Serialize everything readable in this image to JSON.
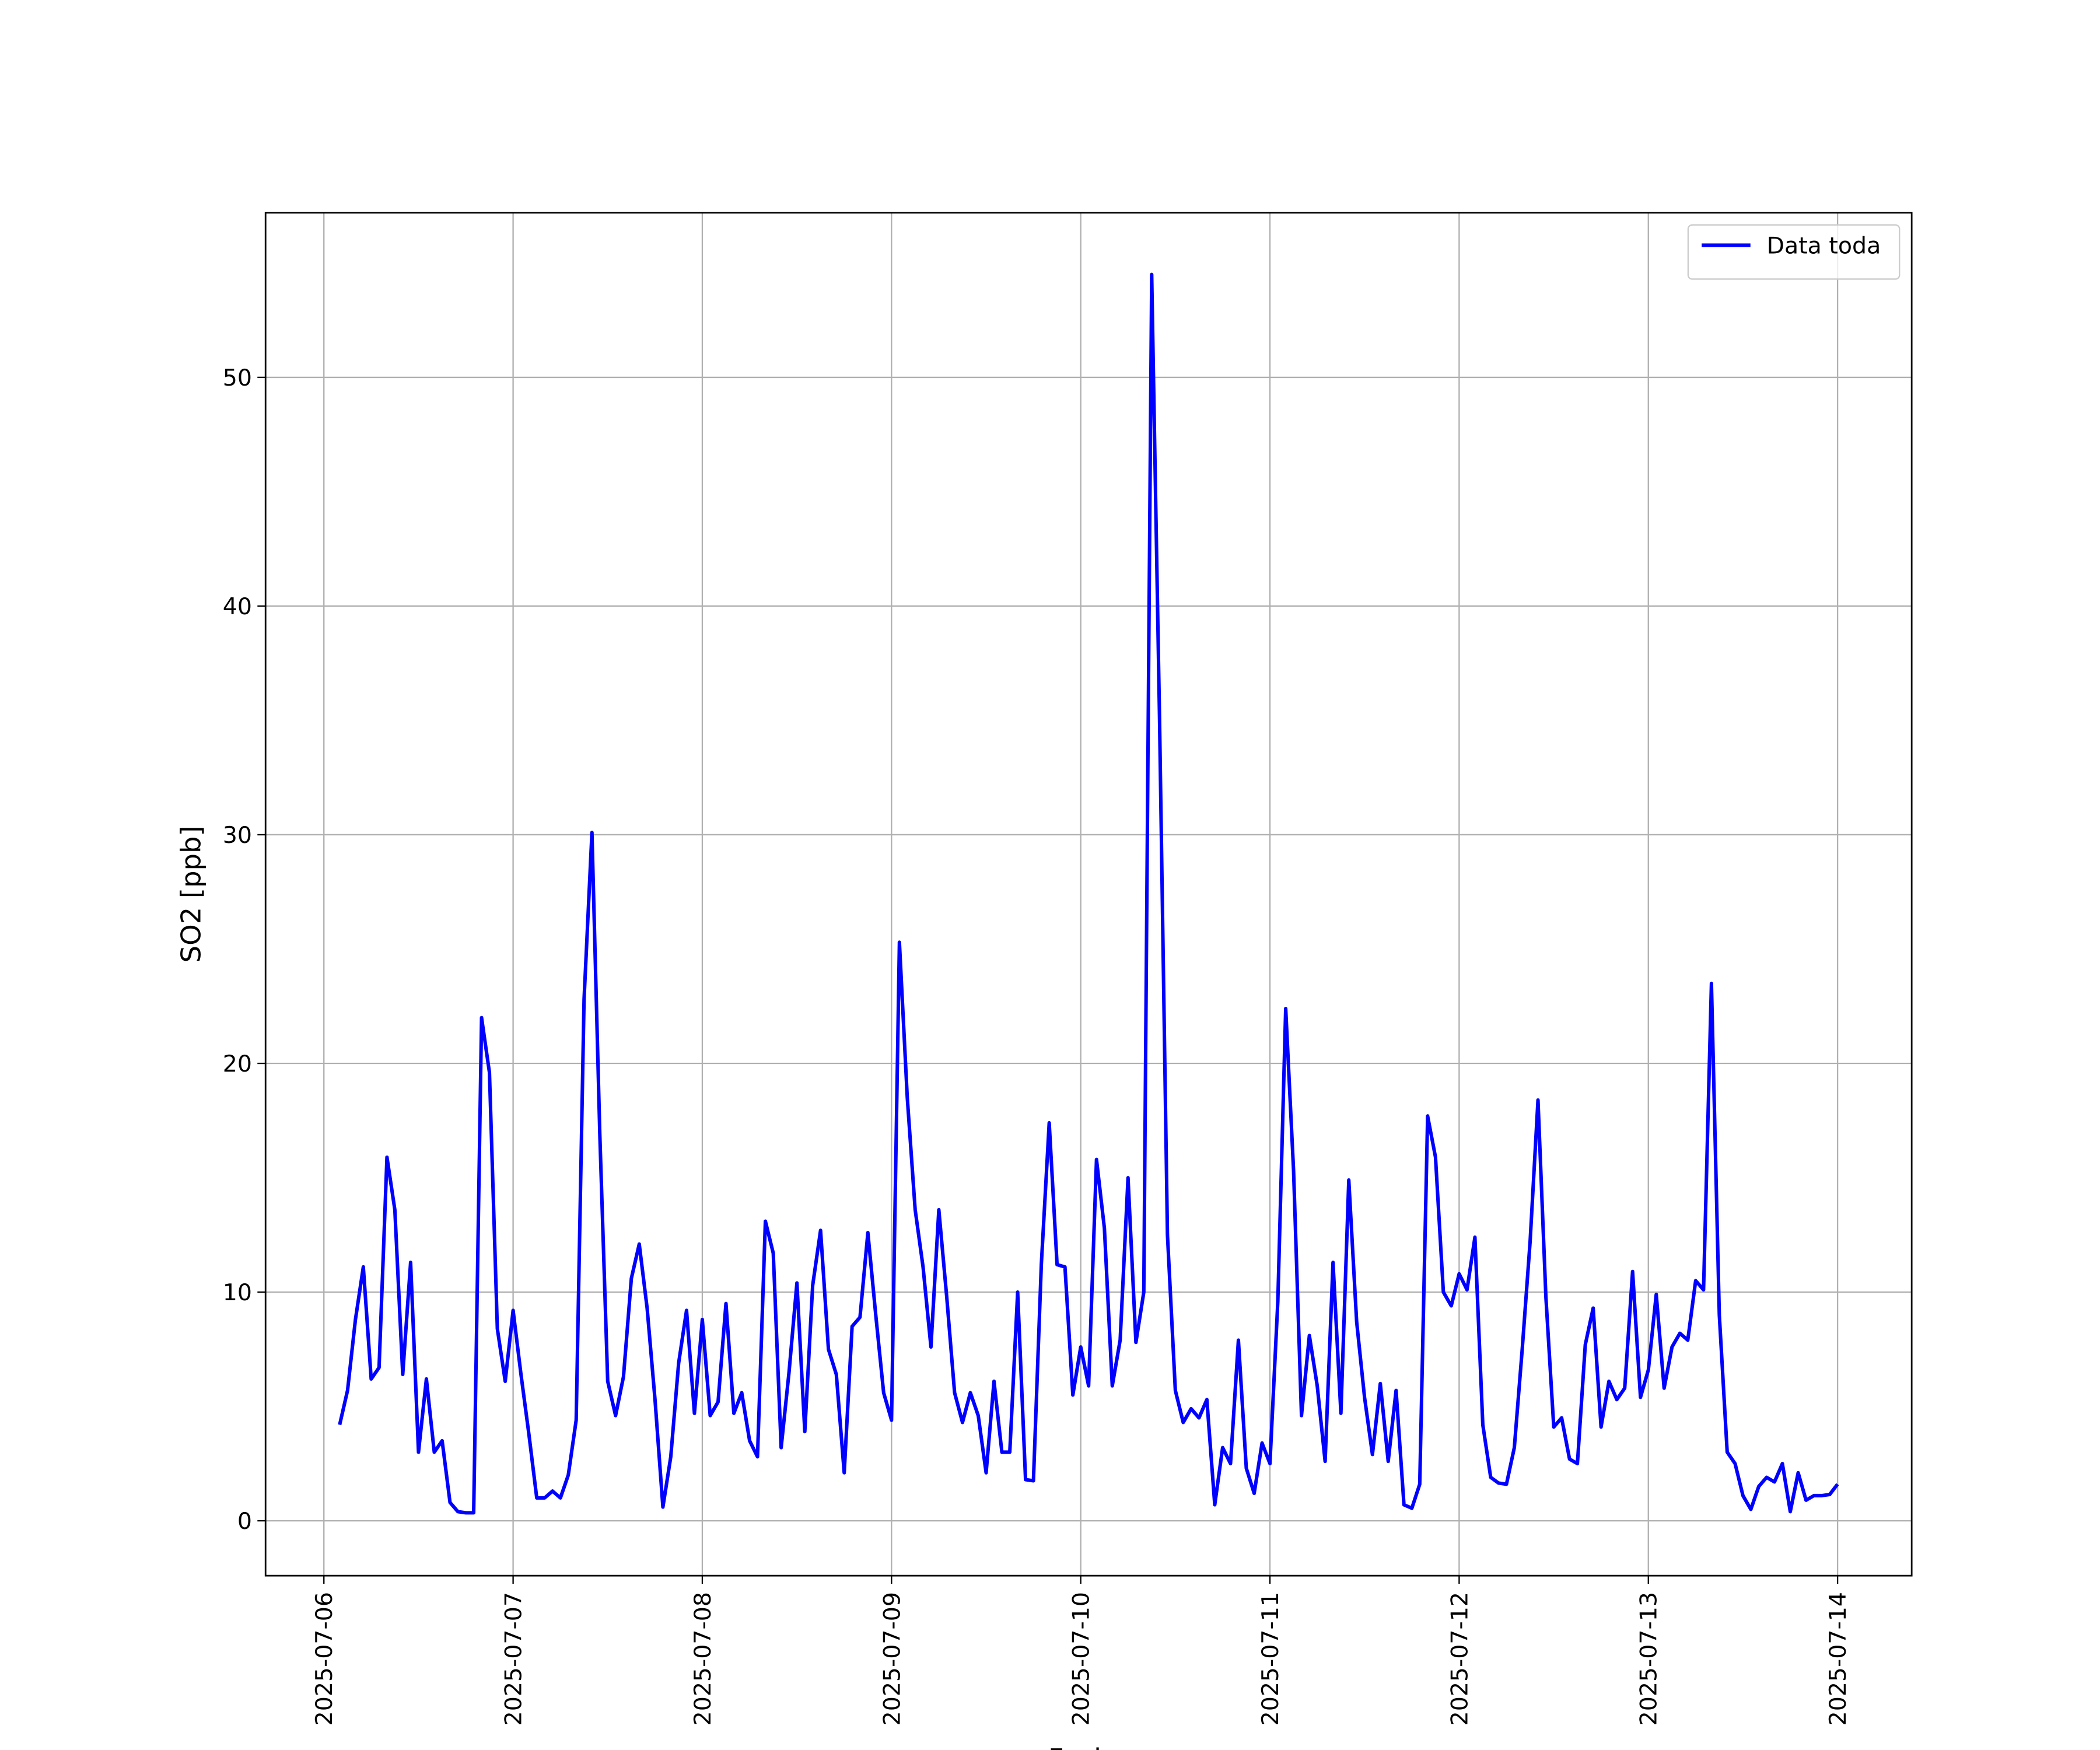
{
  "chart_data": {
    "type": "line",
    "xlabel": "Fecha",
    "ylabel": "SO2 [ppb]",
    "x": [
      "2025-07-06 02:00",
      "2025-07-06 03:00",
      "2025-07-06 04:00",
      "2025-07-06 05:00",
      "2025-07-06 06:00",
      "2025-07-06 07:00",
      "2025-07-06 08:00",
      "2025-07-06 09:00",
      "2025-07-06 10:00",
      "2025-07-06 11:00",
      "2025-07-06 12:00",
      "2025-07-06 13:00",
      "2025-07-06 14:00",
      "2025-07-06 15:00",
      "2025-07-06 16:00",
      "2025-07-06 17:00",
      "2025-07-06 18:00",
      "2025-07-06 19:00",
      "2025-07-06 20:00",
      "2025-07-06 21:00",
      "2025-07-06 22:00",
      "2025-07-06 23:00",
      "2025-07-07 00:00",
      "2025-07-07 01:00",
      "2025-07-07 02:00",
      "2025-07-07 03:00",
      "2025-07-07 04:00",
      "2025-07-07 05:00",
      "2025-07-07 06:00",
      "2025-07-07 07:00",
      "2025-07-07 08:00",
      "2025-07-07 09:00",
      "2025-07-07 10:00",
      "2025-07-07 11:00",
      "2025-07-07 12:00",
      "2025-07-07 13:00",
      "2025-07-07 14:00",
      "2025-07-07 15:00",
      "2025-07-07 16:00",
      "2025-07-07 17:00",
      "2025-07-07 18:00",
      "2025-07-07 19:00",
      "2025-07-07 20:00",
      "2025-07-07 21:00",
      "2025-07-07 22:00",
      "2025-07-07 23:00",
      "2025-07-08 00:00",
      "2025-07-08 01:00",
      "2025-07-08 02:00",
      "2025-07-08 03:00",
      "2025-07-08 04:00",
      "2025-07-08 05:00",
      "2025-07-08 06:00",
      "2025-07-08 07:00",
      "2025-07-08 08:00",
      "2025-07-08 09:00",
      "2025-07-08 10:00",
      "2025-07-08 11:00",
      "2025-07-08 12:00",
      "2025-07-08 13:00",
      "2025-07-08 14:00",
      "2025-07-08 15:00",
      "2025-07-08 16:00",
      "2025-07-08 17:00",
      "2025-07-08 18:00",
      "2025-07-08 19:00",
      "2025-07-08 20:00",
      "2025-07-08 21:00",
      "2025-07-08 22:00",
      "2025-07-08 23:00",
      "2025-07-09 00:00",
      "2025-07-09 01:00",
      "2025-07-09 02:00",
      "2025-07-09 03:00",
      "2025-07-09 04:00",
      "2025-07-09 05:00",
      "2025-07-09 06:00",
      "2025-07-09 07:00",
      "2025-07-09 08:00",
      "2025-07-09 09:00",
      "2025-07-09 10:00",
      "2025-07-09 11:00",
      "2025-07-09 12:00",
      "2025-07-09 13:00",
      "2025-07-09 14:00",
      "2025-07-09 15:00",
      "2025-07-09 16:00",
      "2025-07-09 17:00",
      "2025-07-09 18:00",
      "2025-07-09 19:00",
      "2025-07-09 20:00",
      "2025-07-09 21:00",
      "2025-07-09 22:00",
      "2025-07-09 23:00",
      "2025-07-10 00:00",
      "2025-07-10 01:00",
      "2025-07-10 02:00",
      "2025-07-10 03:00",
      "2025-07-10 04:00",
      "2025-07-10 05:00",
      "2025-07-10 06:00",
      "2025-07-10 07:00",
      "2025-07-10 08:00",
      "2025-07-10 09:00",
      "2025-07-10 10:00",
      "2025-07-10 11:00",
      "2025-07-10 12:00",
      "2025-07-10 13:00",
      "2025-07-10 14:00",
      "2025-07-10 15:00",
      "2025-07-10 16:00",
      "2025-07-10 17:00",
      "2025-07-10 18:00",
      "2025-07-10 19:00",
      "2025-07-10 20:00",
      "2025-07-10 21:00",
      "2025-07-10 22:00",
      "2025-07-10 23:00",
      "2025-07-11 00:00",
      "2025-07-11 01:00",
      "2025-07-11 02:00",
      "2025-07-11 03:00",
      "2025-07-11 04:00",
      "2025-07-11 05:00",
      "2025-07-11 06:00",
      "2025-07-11 07:00",
      "2025-07-11 08:00",
      "2025-07-11 09:00",
      "2025-07-11 10:00",
      "2025-07-11 11:00",
      "2025-07-11 12:00",
      "2025-07-11 13:00",
      "2025-07-11 14:00",
      "2025-07-11 15:00",
      "2025-07-11 16:00",
      "2025-07-11 17:00",
      "2025-07-11 18:00",
      "2025-07-11 19:00",
      "2025-07-11 20:00",
      "2025-07-11 21:00",
      "2025-07-11 22:00",
      "2025-07-11 23:00",
      "2025-07-12 00:00",
      "2025-07-12 01:00",
      "2025-07-12 02:00",
      "2025-07-12 03:00",
      "2025-07-12 04:00",
      "2025-07-12 05:00",
      "2025-07-12 06:00",
      "2025-07-12 07:00",
      "2025-07-12 08:00",
      "2025-07-12 09:00",
      "2025-07-12 10:00",
      "2025-07-12 11:00",
      "2025-07-12 12:00",
      "2025-07-12 13:00",
      "2025-07-12 14:00",
      "2025-07-12 15:00",
      "2025-07-12 16:00",
      "2025-07-12 17:00",
      "2025-07-12 18:00",
      "2025-07-12 19:00",
      "2025-07-12 20:00",
      "2025-07-12 21:00",
      "2025-07-12 22:00",
      "2025-07-12 23:00",
      "2025-07-13 00:00",
      "2025-07-13 01:00",
      "2025-07-13 02:00",
      "2025-07-13 03:00",
      "2025-07-13 04:00",
      "2025-07-13 05:00",
      "2025-07-13 06:00",
      "2025-07-13 07:00",
      "2025-07-13 08:00",
      "2025-07-13 09:00",
      "2025-07-13 10:00",
      "2025-07-13 11:00",
      "2025-07-13 12:00",
      "2025-07-13 13:00",
      "2025-07-13 14:00",
      "2025-07-13 15:00",
      "2025-07-13 16:00",
      "2025-07-13 17:00",
      "2025-07-13 18:00",
      "2025-07-13 19:00",
      "2025-07-13 20:00",
      "2025-07-13 21:00",
      "2025-07-13 22:00",
      "2025-07-13 23:00",
      "2025-07-14 00:00"
    ],
    "series": [
      {
        "name": "Data toda",
        "color": "#0000ff",
        "values": [
          4.2,
          5.7,
          8.8,
          11.1,
          6.2,
          6.7,
          15.9,
          13.6,
          6.4,
          11.3,
          3.0,
          6.2,
          3.0,
          3.5,
          0.8,
          0.4,
          0.35,
          0.35,
          22.0,
          19.6,
          8.4,
          6.1,
          9.2,
          6.4,
          3.8,
          1.0,
          1.0,
          1.3,
          1.0,
          2.0,
          4.4,
          22.8,
          30.1,
          16.9,
          6.1,
          4.6,
          6.3,
          10.6,
          12.1,
          9.3,
          5.3,
          0.6,
          2.8,
          6.9,
          9.2,
          4.7,
          8.8,
          4.6,
          5.2,
          9.5,
          4.7,
          5.6,
          3.5,
          2.8,
          13.1,
          11.7,
          3.2,
          6.5,
          10.4,
          3.9,
          10.3,
          12.7,
          7.5,
          6.4,
          2.1,
          8.5,
          8.9,
          12.6,
          9.0,
          5.6,
          4.4,
          25.3,
          18.5,
          13.6,
          11.1,
          7.6,
          13.6,
          9.8,
          5.6,
          4.3,
          5.6,
          4.6,
          2.1,
          6.1,
          3.0,
          3.0,
          10.0,
          1.8,
          1.75,
          11.2,
          17.4,
          11.2,
          11.1,
          5.5,
          7.6,
          5.9,
          15.8,
          12.8,
          5.9,
          7.9,
          15.0,
          7.8,
          10.0,
          54.5,
          35.0,
          12.5,
          5.7,
          4.3,
          4.9,
          4.5,
          5.3,
          0.7,
          3.2,
          2.5,
          7.9,
          2.3,
          1.2,
          3.4,
          2.5,
          9.6,
          22.4,
          15.3,
          4.6,
          8.1,
          5.9,
          2.6,
          11.3,
          4.7,
          14.9,
          8.7,
          5.4,
          2.9,
          6.0,
          2.6,
          5.7,
          0.7,
          0.55,
          1.6,
          17.7,
          15.9,
          10.0,
          9.4,
          10.8,
          10.1,
          12.4,
          4.2,
          1.9,
          1.65,
          1.6,
          3.2,
          7.5,
          12.2,
          18.4,
          9.8,
          4.1,
          4.5,
          2.7,
          2.5,
          7.7,
          9.3,
          4.1,
          6.1,
          5.3,
          5.8,
          10.9,
          5.4,
          6.6,
          9.9,
          5.8,
          7.6,
          8.2,
          7.9,
          10.5,
          10.1,
          23.5,
          9.0,
          3.0,
          2.5,
          1.1,
          0.5,
          1.5,
          1.9,
          1.7,
          2.5,
          0.4,
          2.1,
          0.9,
          1.1,
          1.1,
          1.15,
          1.6
        ]
      }
    ],
    "xlim": [
      "2025-07-05 16:36",
      "2025-07-14 09:24"
    ],
    "xticks": [
      "2025-07-06",
      "2025-07-07",
      "2025-07-08",
      "2025-07-09",
      "2025-07-10",
      "2025-07-11",
      "2025-07-12",
      "2025-07-13",
      "2025-07-14"
    ],
    "ylim": [
      -2.4,
      57.2
    ],
    "yticks": [
      0,
      10,
      20,
      30,
      40,
      50
    ],
    "grid": true,
    "legend": "upper right"
  }
}
